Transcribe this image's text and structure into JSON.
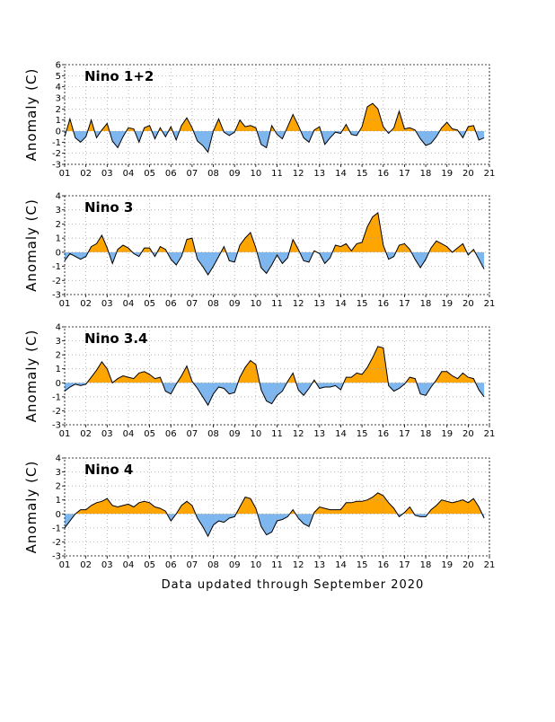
{
  "footer_text": "Data updated through September 2020",
  "colors": {
    "positive": "#FFA500",
    "negative": "#7EB6F0",
    "line": "#000000",
    "grid": "#999999"
  },
  "chart_data": [
    {
      "type": "area",
      "title": "Nino 1+2",
      "ylabel": "Anomaly (C)",
      "xlabel": "",
      "ylim": [
        -3,
        6
      ],
      "yticks": [
        -3,
        -2,
        -1,
        0,
        1,
        2,
        3,
        4,
        5,
        6
      ],
      "xlim": [
        2001,
        2021
      ],
      "xtick_labels": [
        "01",
        "02",
        "03",
        "04",
        "05",
        "06",
        "07",
        "08",
        "09",
        "10",
        "11",
        "12",
        "13",
        "14",
        "15",
        "16",
        "17",
        "18",
        "19",
        "20",
        "21"
      ],
      "grid": true,
      "x": [
        2001.0,
        2001.25,
        2001.5,
        2001.75,
        2002.0,
        2002.25,
        2002.5,
        2002.75,
        2003.0,
        2003.25,
        2003.5,
        2003.75,
        2004.0,
        2004.25,
        2004.5,
        2004.75,
        2005.0,
        2005.25,
        2005.5,
        2005.75,
        2006.0,
        2006.25,
        2006.5,
        2006.75,
        2007.0,
        2007.25,
        2007.5,
        2007.75,
        2008.0,
        2008.25,
        2008.5,
        2008.75,
        2009.0,
        2009.25,
        2009.5,
        2009.75,
        2010.0,
        2010.25,
        2010.5,
        2010.75,
        2011.0,
        2011.25,
        2011.5,
        2011.75,
        2012.0,
        2012.25,
        2012.5,
        2012.75,
        2013.0,
        2013.25,
        2013.5,
        2013.75,
        2014.0,
        2014.25,
        2014.5,
        2014.75,
        2015.0,
        2015.25,
        2015.5,
        2015.75,
        2016.0,
        2016.25,
        2016.5,
        2016.75,
        2017.0,
        2017.25,
        2017.5,
        2017.75,
        2018.0,
        2018.25,
        2018.5,
        2018.75,
        2019.0,
        2019.25,
        2019.5,
        2019.75,
        2020.0,
        2020.25,
        2020.5,
        2020.75
      ],
      "values": [
        -0.5,
        1.1,
        -0.6,
        -1.0,
        -0.5,
        1.0,
        -0.6,
        0.1,
        0.7,
        -0.9,
        -1.5,
        -0.5,
        0.3,
        0.2,
        -1.0,
        0.3,
        0.5,
        -0.7,
        0.3,
        -0.5,
        0.4,
        -0.8,
        0.5,
        1.2,
        0.3,
        -0.9,
        -1.3,
        -1.9,
        0.0,
        1.1,
        -0.1,
        -0.4,
        -0.1,
        1.0,
        0.4,
        0.5,
        0.3,
        -1.2,
        -1.5,
        0.5,
        -0.3,
        -0.7,
        0.4,
        1.5,
        0.5,
        -0.6,
        -1.0,
        0.1,
        0.4,
        -1.2,
        -0.6,
        -0.1,
        -0.2,
        0.6,
        -0.3,
        -0.4,
        0.4,
        2.2,
        2.5,
        2.0,
        0.4,
        -0.2,
        0.3,
        1.8,
        0.2,
        0.3,
        0.1,
        -0.7,
        -1.3,
        -1.1,
        -0.5,
        0.3,
        0.8,
        0.2,
        0.1,
        -0.6,
        0.4,
        0.5,
        -0.8,
        -0.6
      ]
    },
    {
      "type": "area",
      "title": "Nino 3",
      "ylabel": "Anomaly (C)",
      "xlabel": "",
      "ylim": [
        -3,
        4
      ],
      "yticks": [
        -3,
        -2,
        -1,
        0,
        1,
        2,
        3,
        4
      ],
      "xlim": [
        2001,
        2021
      ],
      "xtick_labels": [
        "01",
        "02",
        "03",
        "04",
        "05",
        "06",
        "07",
        "08",
        "09",
        "10",
        "11",
        "12",
        "13",
        "14",
        "15",
        "16",
        "17",
        "18",
        "19",
        "20",
        "21"
      ],
      "grid": true,
      "x": [
        2001.0,
        2001.25,
        2001.5,
        2001.75,
        2002.0,
        2002.25,
        2002.5,
        2002.75,
        2003.0,
        2003.25,
        2003.5,
        2003.75,
        2004.0,
        2004.25,
        2004.5,
        2004.75,
        2005.0,
        2005.25,
        2005.5,
        2005.75,
        2006.0,
        2006.25,
        2006.5,
        2006.75,
        2007.0,
        2007.25,
        2007.5,
        2007.75,
        2008.0,
        2008.25,
        2008.5,
        2008.75,
        2009.0,
        2009.25,
        2009.5,
        2009.75,
        2010.0,
        2010.25,
        2010.5,
        2010.75,
        2011.0,
        2011.25,
        2011.5,
        2011.75,
        2012.0,
        2012.25,
        2012.5,
        2012.75,
        2013.0,
        2013.25,
        2013.5,
        2013.75,
        2014.0,
        2014.25,
        2014.5,
        2014.75,
        2015.0,
        2015.25,
        2015.5,
        2015.75,
        2016.0,
        2016.25,
        2016.5,
        2016.75,
        2017.0,
        2017.25,
        2017.5,
        2017.75,
        2018.0,
        2018.25,
        2018.5,
        2018.75,
        2019.0,
        2019.25,
        2019.5,
        2019.75,
        2020.0,
        2020.25,
        2020.5,
        2020.75
      ],
      "values": [
        -0.6,
        -0.1,
        -0.3,
        -0.5,
        -0.3,
        0.4,
        0.6,
        1.2,
        0.3,
        -0.8,
        0.2,
        0.5,
        0.3,
        -0.1,
        -0.3,
        0.3,
        0.3,
        -0.3,
        0.4,
        0.2,
        -0.5,
        -0.9,
        -0.3,
        0.9,
        1.0,
        -0.5,
        -1.0,
        -1.6,
        -1.0,
        -0.3,
        0.4,
        -0.6,
        -0.7,
        0.5,
        1.0,
        1.4,
        0.3,
        -1.1,
        -1.5,
        -0.9,
        -0.2,
        -0.8,
        -0.4,
        0.9,
        0.2,
        -0.6,
        -0.7,
        0.1,
        -0.1,
        -0.8,
        -0.4,
        0.5,
        0.4,
        0.6,
        0.1,
        0.6,
        0.7,
        1.8,
        2.5,
        2.8,
        0.5,
        -0.5,
        -0.3,
        0.5,
        0.6,
        0.2,
        -0.5,
        -1.1,
        -0.5,
        0.3,
        0.8,
        0.6,
        0.4,
        0.0,
        0.3,
        0.6,
        -0.2,
        0.2,
        -0.5,
        -1.2
      ]
    },
    {
      "type": "area",
      "title": "Nino 3.4",
      "ylabel": "Anomaly (C)",
      "xlabel": "",
      "ylim": [
        -3,
        4
      ],
      "yticks": [
        -3,
        -2,
        -1,
        0,
        1,
        2,
        3,
        4
      ],
      "xlim": [
        2001,
        2021
      ],
      "xtick_labels": [
        "01",
        "02",
        "03",
        "04",
        "05",
        "06",
        "07",
        "08",
        "09",
        "10",
        "11",
        "12",
        "13",
        "14",
        "15",
        "16",
        "17",
        "18",
        "19",
        "20",
        "21"
      ],
      "grid": true,
      "x": [
        2001.0,
        2001.25,
        2001.5,
        2001.75,
        2002.0,
        2002.25,
        2002.5,
        2002.75,
        2003.0,
        2003.25,
        2003.5,
        2003.75,
        2004.0,
        2004.25,
        2004.5,
        2004.75,
        2005.0,
        2005.25,
        2005.5,
        2005.75,
        2006.0,
        2006.25,
        2006.5,
        2006.75,
        2007.0,
        2007.25,
        2007.5,
        2007.75,
        2008.0,
        2008.25,
        2008.5,
        2008.75,
        2009.0,
        2009.25,
        2009.5,
        2009.75,
        2010.0,
        2010.25,
        2010.5,
        2010.75,
        2011.0,
        2011.25,
        2011.5,
        2011.75,
        2012.0,
        2012.25,
        2012.5,
        2012.75,
        2013.0,
        2013.25,
        2013.5,
        2013.75,
        2014.0,
        2014.25,
        2014.5,
        2014.75,
        2015.0,
        2015.25,
        2015.5,
        2015.75,
        2016.0,
        2016.25,
        2016.5,
        2016.75,
        2017.0,
        2017.25,
        2017.5,
        2017.75,
        2018.0,
        2018.25,
        2018.5,
        2018.75,
        2019.0,
        2019.25,
        2019.5,
        2019.75,
        2020.0,
        2020.25,
        2020.5,
        2020.75
      ],
      "values": [
        -0.6,
        -0.3,
        -0.1,
        -0.2,
        -0.1,
        0.4,
        0.9,
        1.5,
        1.0,
        0.0,
        0.3,
        0.5,
        0.4,
        0.3,
        0.7,
        0.8,
        0.6,
        0.3,
        0.4,
        -0.6,
        -0.8,
        -0.1,
        0.5,
        1.2,
        0.1,
        -0.4,
        -1.0,
        -1.6,
        -0.8,
        -0.3,
        -0.4,
        -0.8,
        -0.7,
        0.4,
        1.1,
        1.6,
        1.3,
        -0.5,
        -1.3,
        -1.5,
        -0.9,
        -0.6,
        0.1,
        0.7,
        -0.5,
        -0.9,
        -0.4,
        0.2,
        -0.4,
        -0.3,
        -0.3,
        -0.2,
        -0.5,
        0.4,
        0.4,
        0.7,
        0.6,
        1.1,
        1.8,
        2.6,
        2.5,
        -0.2,
        -0.6,
        -0.4,
        -0.1,
        0.4,
        0.3,
        -0.8,
        -0.9,
        -0.3,
        0.2,
        0.8,
        0.8,
        0.5,
        0.3,
        0.7,
        0.4,
        0.3,
        -0.5,
        -1.0
      ]
    },
    {
      "type": "area",
      "title": "Nino 4",
      "ylabel": "Anomaly (C)",
      "xlabel": "",
      "ylim": [
        -3,
        4
      ],
      "yticks": [
        -3,
        -2,
        -1,
        0,
        1,
        2,
        3,
        4
      ],
      "xlim": [
        2001,
        2021
      ],
      "xtick_labels": [
        "01",
        "02",
        "03",
        "04",
        "05",
        "06",
        "07",
        "08",
        "09",
        "10",
        "11",
        "12",
        "13",
        "14",
        "15",
        "16",
        "17",
        "18",
        "19",
        "20",
        "21"
      ],
      "grid": true,
      "x": [
        2001.0,
        2001.25,
        2001.5,
        2001.75,
        2002.0,
        2002.25,
        2002.5,
        2002.75,
        2003.0,
        2003.25,
        2003.5,
        2003.75,
        2004.0,
        2004.25,
        2004.5,
        2004.75,
        2005.0,
        2005.25,
        2005.5,
        2005.75,
        2006.0,
        2006.25,
        2006.5,
        2006.75,
        2007.0,
        2007.25,
        2007.5,
        2007.75,
        2008.0,
        2008.25,
        2008.5,
        2008.75,
        2009.0,
        2009.25,
        2009.5,
        2009.75,
        2010.0,
        2010.25,
        2010.5,
        2010.75,
        2011.0,
        2011.25,
        2011.5,
        2011.75,
        2012.0,
        2012.25,
        2012.5,
        2012.75,
        2013.0,
        2013.25,
        2013.5,
        2013.75,
        2014.0,
        2014.25,
        2014.5,
        2014.75,
        2015.0,
        2015.25,
        2015.5,
        2015.75,
        2016.0,
        2016.25,
        2016.5,
        2016.75,
        2017.0,
        2017.25,
        2017.5,
        2017.75,
        2018.0,
        2018.25,
        2018.5,
        2018.75,
        2019.0,
        2019.25,
        2019.5,
        2019.75,
        2020.0,
        2020.25,
        2020.5,
        2020.75
      ],
      "values": [
        -1.0,
        -0.5,
        0.0,
        0.3,
        0.3,
        0.6,
        0.8,
        0.9,
        1.1,
        0.6,
        0.5,
        0.6,
        0.7,
        0.5,
        0.8,
        0.9,
        0.8,
        0.5,
        0.4,
        0.2,
        -0.5,
        0.0,
        0.6,
        0.9,
        0.6,
        -0.3,
        -0.9,
        -1.6,
        -0.8,
        -0.5,
        -0.6,
        -0.3,
        -0.2,
        0.5,
        1.2,
        1.1,
        0.4,
        -0.9,
        -1.5,
        -1.3,
        -0.5,
        -0.4,
        -0.2,
        0.3,
        -0.3,
        -0.7,
        -0.9,
        0.1,
        0.5,
        0.4,
        0.3,
        0.3,
        0.3,
        0.8,
        0.8,
        0.9,
        0.9,
        1.0,
        1.2,
        1.5,
        1.3,
        0.8,
        0.4,
        -0.2,
        0.1,
        0.5,
        -0.1,
        -0.2,
        -0.2,
        0.3,
        0.6,
        1.0,
        0.9,
        0.8,
        0.9,
        1.0,
        0.8,
        1.1,
        0.5,
        -0.3
      ]
    }
  ]
}
